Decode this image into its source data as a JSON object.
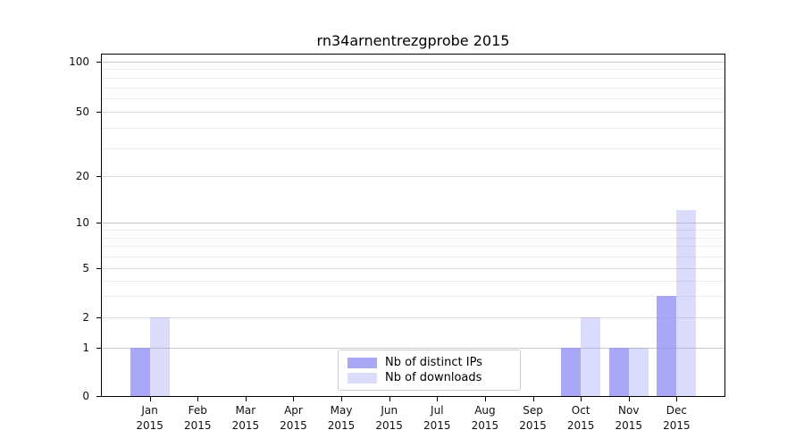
{
  "title": "rn34arnentrezgprobe 2015",
  "chart_data": {
    "type": "bar",
    "title": "rn34arnentrezgprobe 2015",
    "categories": [
      "Jan",
      "Feb",
      "Mar",
      "Apr",
      "May",
      "Jun",
      "Jul",
      "Aug",
      "Sep",
      "Oct",
      "Nov",
      "Dec"
    ],
    "year": "2015",
    "series": [
      {
        "name": "Nb of distinct IPs",
        "color": "rgba(146,146,244,0.8)",
        "values": [
          1,
          0,
          0,
          0,
          0,
          0,
          0,
          0,
          0,
          1,
          1,
          3
        ]
      },
      {
        "name": "Nb of downloads",
        "color": "rgba(146,146,244,0.33)",
        "values": [
          2,
          0,
          0,
          0,
          0,
          0,
          0,
          0,
          0,
          2,
          1,
          12
        ]
      }
    ],
    "xlabel": "",
    "ylabel": "",
    "y_axis": {
      "ticks": [
        0,
        1,
        2,
        5,
        10,
        20,
        50,
        100
      ],
      "decade_ticks": [
        1,
        10,
        100
      ],
      "minor_gridlines": [
        3,
        4,
        6,
        7,
        8,
        9,
        30,
        40,
        60,
        70,
        80,
        90
      ],
      "scale": "log-like (0,1,2,5,10,20,50,100)",
      "ylim": [
        0,
        110
      ]
    },
    "grid": "horizontal",
    "legend_position": "lower center inside plot"
  }
}
